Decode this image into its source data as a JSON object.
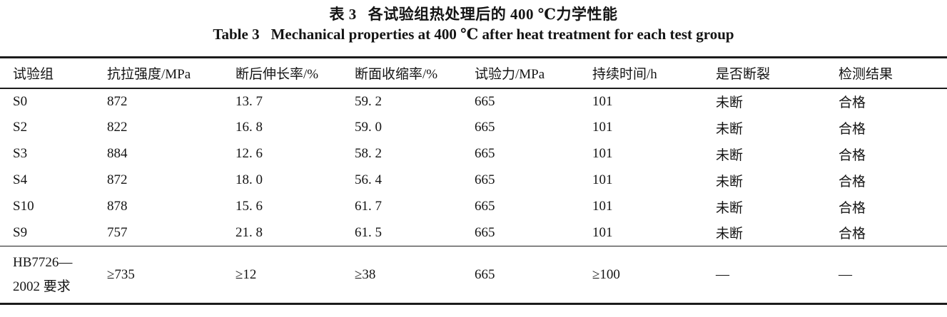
{
  "caption": {
    "label_cn": "表 3",
    "title_cn": "各试验组热处理后的 400 ℃力学性能",
    "label_en": "Table 3",
    "title_en": "Mechanical properties at 400 ℃ after heat treatment for each test group"
  },
  "chart_data": {
    "type": "table",
    "columns": [
      "试验组",
      "抗拉强度/MPa",
      "断后伸长率/%",
      "断面收缩率/%",
      "试验力/MPa",
      "持续时间/h",
      "是否断裂",
      "检测结果"
    ],
    "rows": [
      [
        "S0",
        "872",
        "13. 7",
        "59. 2",
        "665",
        "101",
        "未断",
        "合格"
      ],
      [
        "S2",
        "822",
        "16. 8",
        "59. 0",
        "665",
        "101",
        "未断",
        "合格"
      ],
      [
        "S3",
        "884",
        "12. 6",
        "58. 2",
        "665",
        "101",
        "未断",
        "合格"
      ],
      [
        "S4",
        "872",
        "18. 0",
        "56. 4",
        "665",
        "101",
        "未断",
        "合格"
      ],
      [
        "S10",
        "878",
        "15. 6",
        "61. 7",
        "665",
        "101",
        "未断",
        "合格"
      ],
      [
        "S9",
        "757",
        "21. 8",
        "61. 5",
        "665",
        "101",
        "未断",
        "合格"
      ]
    ],
    "footer_row": [
      "HB7726—2002 要求",
      "≥735",
      "≥12",
      "≥38",
      "665",
      "≥100",
      "—",
      "—"
    ],
    "text_color": "#141414",
    "rule_color": "#1c1c1c",
    "background": "#ffffff"
  }
}
